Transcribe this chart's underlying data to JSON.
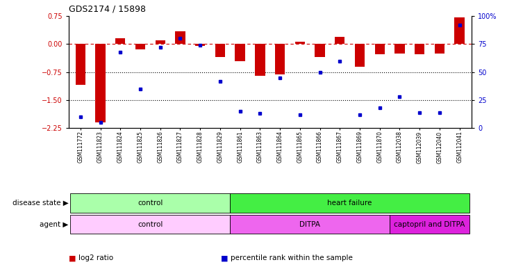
{
  "title": "GDS2174 / 15898",
  "samples": [
    "GSM111772",
    "GSM111823",
    "GSM111824",
    "GSM111825",
    "GSM111826",
    "GSM111827",
    "GSM111828",
    "GSM111829",
    "GSM111861",
    "GSM111863",
    "GSM111864",
    "GSM111865",
    "GSM111866",
    "GSM111867",
    "GSM111869",
    "GSM111870",
    "GSM112038",
    "GSM112039",
    "GSM112040",
    "GSM112041"
  ],
  "log2_ratio": [
    -1.1,
    -2.1,
    0.15,
    -0.15,
    0.1,
    0.35,
    -0.04,
    -0.35,
    -0.45,
    -0.85,
    -0.82,
    0.07,
    -0.35,
    0.2,
    -0.6,
    -0.28,
    -0.25,
    -0.28,
    -0.25,
    0.72
  ],
  "percentile": [
    10,
    5,
    68,
    35,
    72,
    80,
    74,
    42,
    15,
    13,
    45,
    12,
    50,
    60,
    12,
    18,
    28,
    14,
    14,
    92
  ],
  "ylim_left": [
    -2.25,
    0.75
  ],
  "ylim_right": [
    0,
    100
  ],
  "yticks_left": [
    -2.25,
    -1.5,
    -0.75,
    0,
    0.75
  ],
  "yticks_right": [
    0,
    25,
    50,
    75,
    100
  ],
  "ytick_labels_right": [
    "0",
    "25",
    "50",
    "75",
    "100%"
  ],
  "hlines": [
    -0.75,
    -1.5
  ],
  "bar_color": "#cc0000",
  "dot_color": "#0000cc",
  "dashed_line_color": "#cc0000",
  "disease_state_groups": [
    {
      "label": "control",
      "start": 0,
      "end": 8,
      "color": "#aaffaa"
    },
    {
      "label": "heart failure",
      "start": 8,
      "end": 20,
      "color": "#44ee44"
    }
  ],
  "agent_groups": [
    {
      "label": "control",
      "start": 0,
      "end": 8,
      "color": "#ffccff"
    },
    {
      "label": "DITPA",
      "start": 8,
      "end": 16,
      "color": "#ee66ee"
    },
    {
      "label": "captopril and DITPA",
      "start": 16,
      "end": 20,
      "color": "#dd22dd"
    }
  ],
  "disease_state_label": "disease state",
  "agent_label": "agent",
  "legend_items": [
    {
      "color": "#cc0000",
      "label": "log2 ratio"
    },
    {
      "color": "#0000cc",
      "label": "percentile rank within the sample"
    }
  ]
}
